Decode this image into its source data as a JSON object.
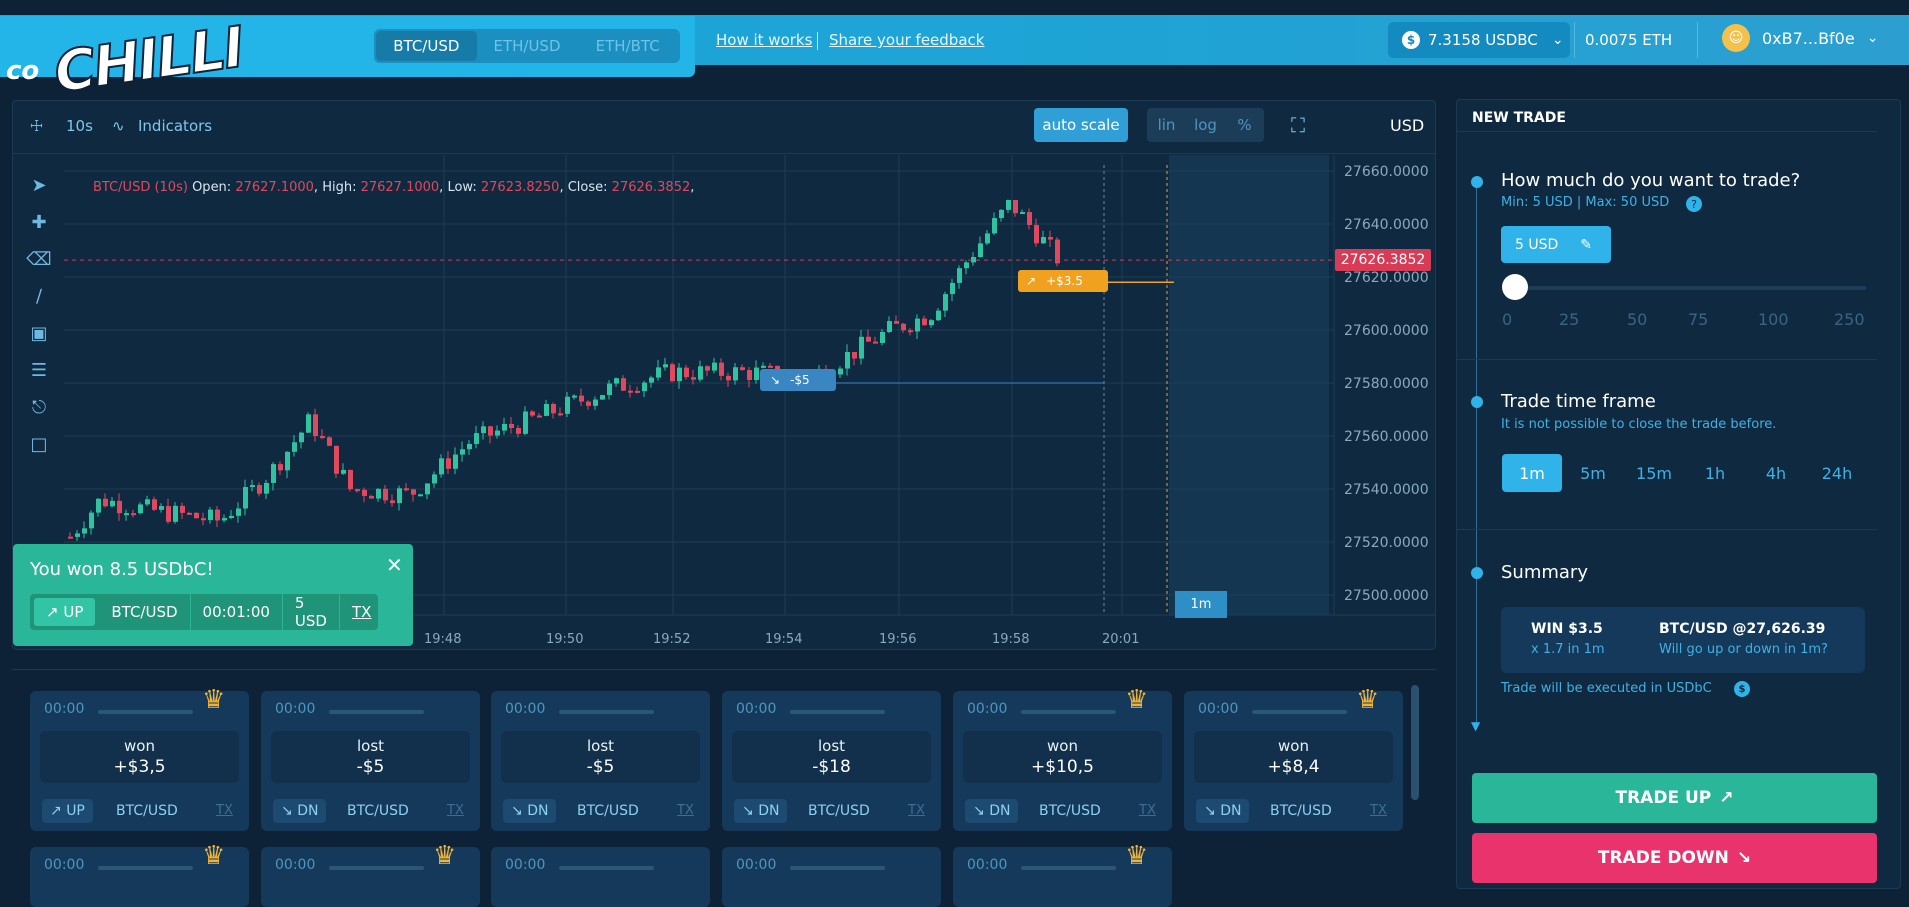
{
  "brand": {
    "co": "co",
    "name": "CHILLI"
  },
  "pairs": [
    {
      "label": "BTC/USD",
      "active": true
    },
    {
      "label": "ETH/USD",
      "active": false
    },
    {
      "label": "ETH/BTC",
      "active": false
    }
  ],
  "links": {
    "how": "How it works",
    "sep": "|",
    "feedback": "Share your feedback"
  },
  "balance": {
    "usdbc": "7.3158 USDBC",
    "eth": "0.0075 ETH",
    "wallet": "0xB7...Bf0e"
  },
  "toolbar": {
    "interval": "10s",
    "indicators": "Indicators",
    "autoscale": "auto scale",
    "lin": "lin",
    "log": "log",
    "pct": "%",
    "currency": "USD"
  },
  "chart": {
    "pair": "BTC/USD (10s)",
    "open_label": "Open:",
    "open": "27627.1000",
    "high_label": "High:",
    "high": "27627.1000",
    "low_label": "Low:",
    "low": "27623.8250",
    "close_label": "Close:",
    "close": "27626.3852",
    "price_tag": "27626.3852",
    "trade_up_tag": "+$3.5",
    "trade_down_tag": "-$5",
    "duration_tag": "1m"
  },
  "chart_data": {
    "type": "candlestick",
    "y_ticks": [
      "27660.0000",
      "27640.0000",
      "27620.0000",
      "27600.0000",
      "27580.0000",
      "27560.0000",
      "27540.0000",
      "27520.0000",
      "27500.0000"
    ],
    "x_ticks": [
      "19:48",
      "19:50",
      "19:52",
      "19:54",
      "19:56",
      "19:58",
      "20:01"
    ],
    "ylim": [
      27495,
      27665
    ]
  },
  "toast": {
    "title": "You won 8.5 USDbC!",
    "dir": "UP",
    "pair": "BTC/USD",
    "duration": "00:01:00",
    "amount": "5 USD",
    "tx": "TX"
  },
  "trades": [
    {
      "time": "00:00",
      "result": "won",
      "amount": "+$3,5",
      "dir": "UP",
      "pair": "BTC/USD",
      "tx": "TX",
      "crown": true
    },
    {
      "time": "00:00",
      "result": "lost",
      "amount": "-$5",
      "dir": "DN",
      "pair": "BTC/USD",
      "tx": "TX",
      "crown": false
    },
    {
      "time": "00:00",
      "result": "lost",
      "amount": "-$5",
      "dir": "DN",
      "pair": "BTC/USD",
      "tx": "TX",
      "crown": false
    },
    {
      "time": "00:00",
      "result": "lost",
      "amount": "-$18",
      "dir": "DN",
      "pair": "BTC/USD",
      "tx": "TX",
      "crown": false
    },
    {
      "time": "00:00",
      "result": "won",
      "amount": "+$10,5",
      "dir": "DN",
      "pair": "BTC/USD",
      "tx": "TX",
      "crown": true
    },
    {
      "time": "00:00",
      "result": "won",
      "amount": "+$8,4",
      "dir": "DN",
      "pair": "BTC/USD",
      "tx": "TX",
      "crown": true
    }
  ],
  "trades_row2": [
    {
      "time": "00:00",
      "crown": true
    },
    {
      "time": "00:00",
      "crown": true
    },
    {
      "time": "00:00",
      "crown": false
    },
    {
      "time": "00:00",
      "crown": false
    },
    {
      "time": "00:00",
      "crown": true
    }
  ],
  "newtrade": {
    "title": "NEW TRADE",
    "q1": "How much do you want to trade?",
    "q1sub": "Min: 5 USD | Max: 50 USD",
    "amount": "5 USD",
    "ticks": [
      "0",
      "25",
      "50",
      "75",
      "100",
      "250"
    ],
    "tf_title": "Trade time frame",
    "tf_sub": "It is not possible to close the trade before.",
    "timeframes": [
      "1m",
      "5m",
      "15m",
      "1h",
      "4h",
      "24h"
    ],
    "summary_title": "Summary",
    "win": "WIN $3.5",
    "mult": "x 1.7 in 1m",
    "price": "BTC/USD @27,626.39",
    "question": "Will go up or down in 1m?",
    "note": "Trade will be executed in USDbC",
    "up": "TRADE UP",
    "down": "TRADE DOWN"
  }
}
